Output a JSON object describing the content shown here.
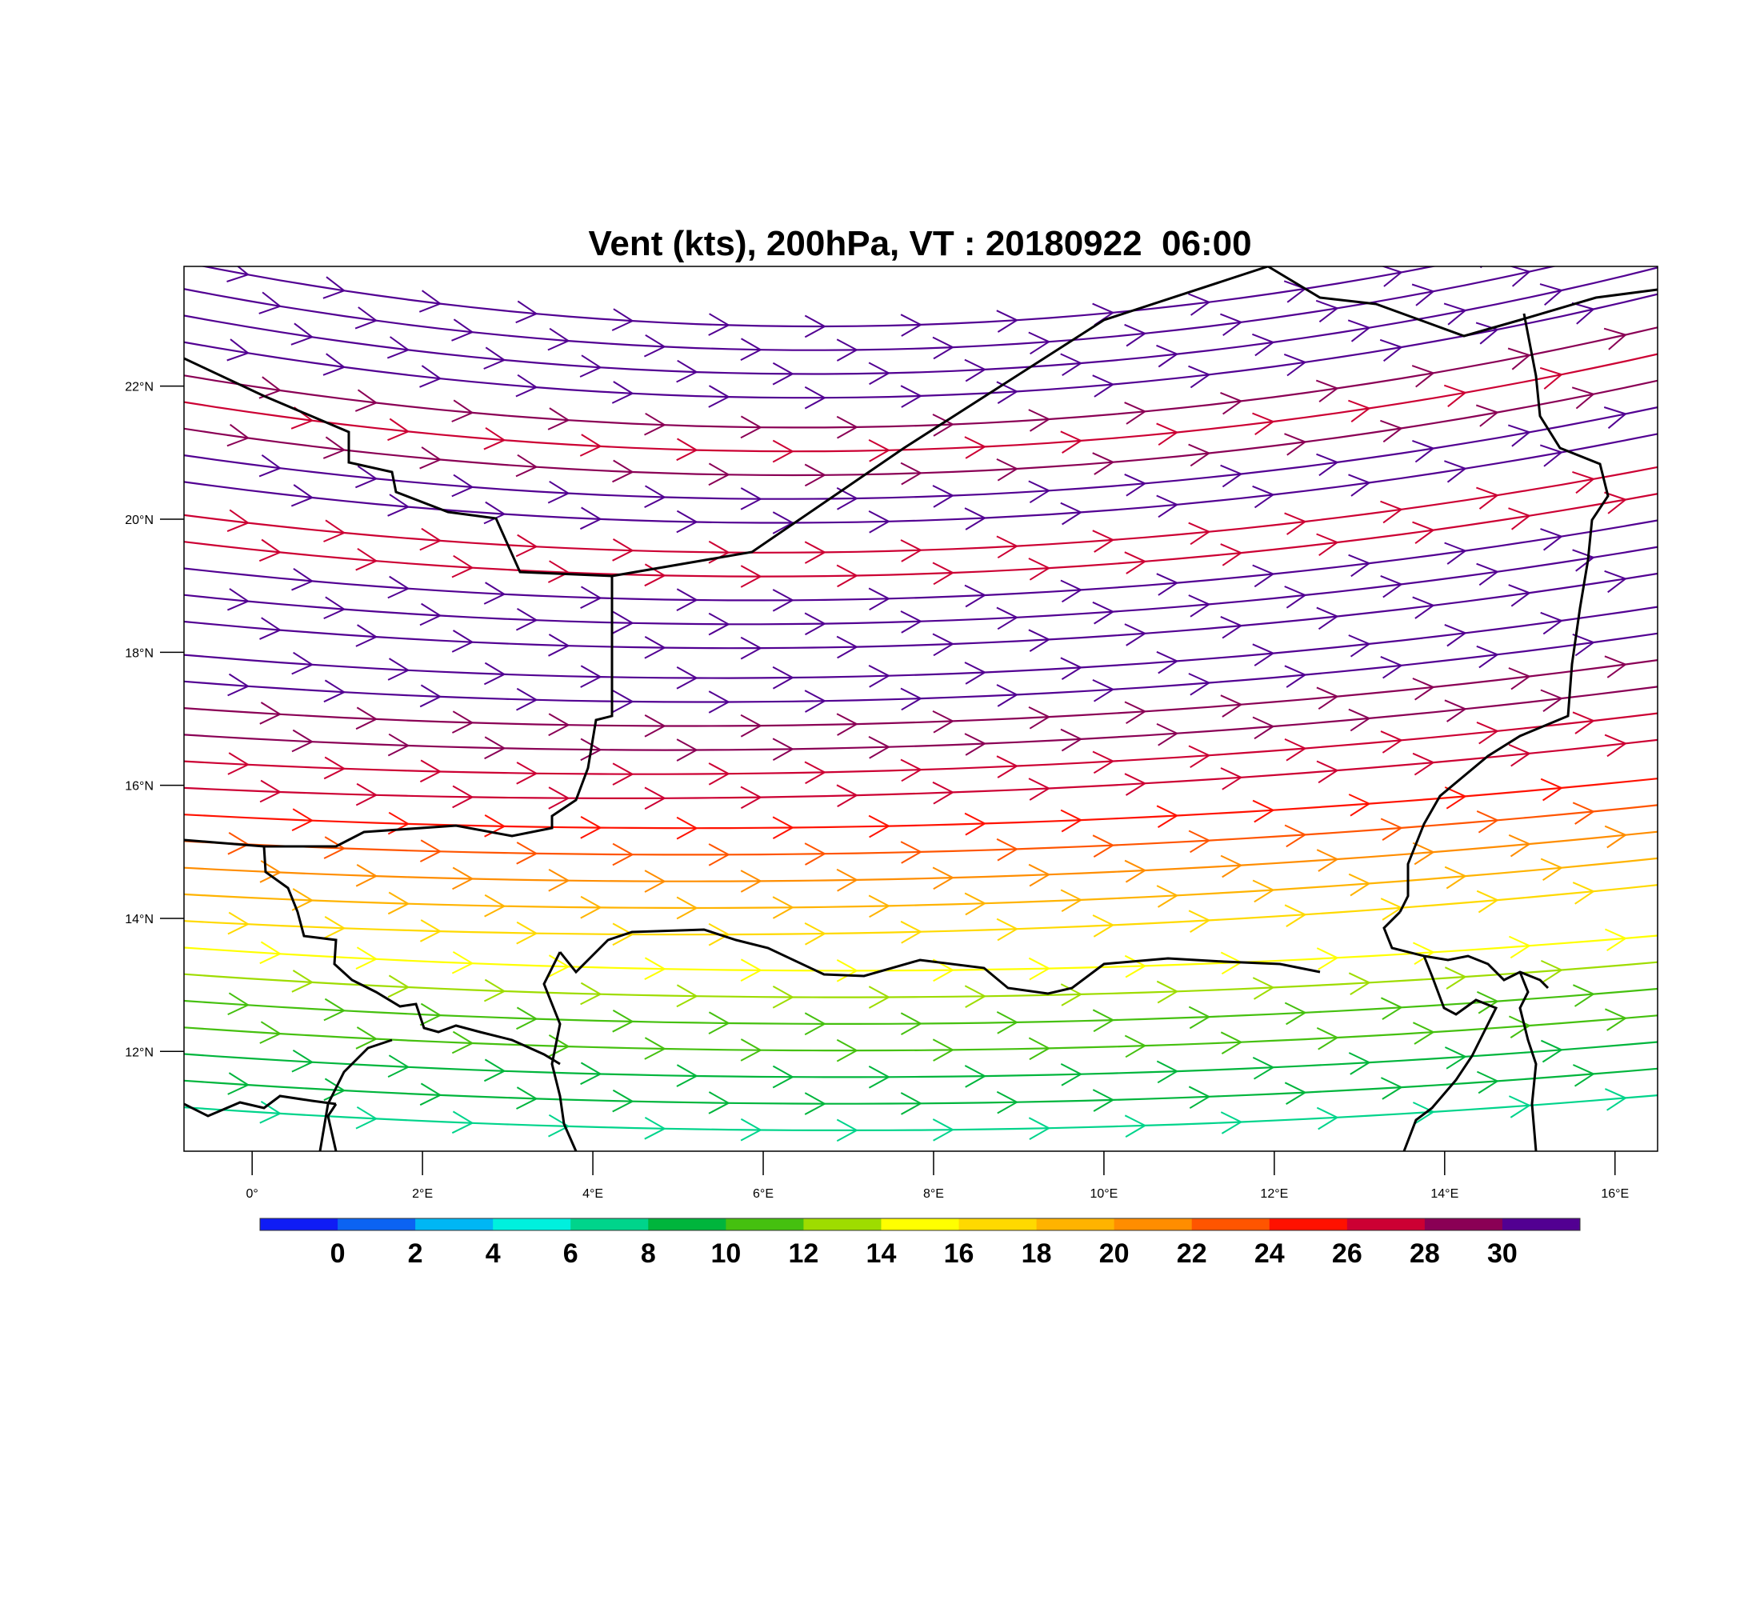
{
  "title": "Vent (kts), 200hPa, VT : 20180922  06:00",
  "map": {
    "lon_range": [
      -0.8,
      16.5
    ],
    "lat_range": [
      10.5,
      23.8
    ],
    "lon_ticks": [
      0,
      2,
      4,
      6,
      8,
      10,
      12,
      14,
      16
    ],
    "lon_tick_labels": [
      "0°",
      "2°E",
      "4°E",
      "6°E",
      "8°E",
      "10°E",
      "12°E",
      "14°E",
      "16°E"
    ],
    "lat_ticks": [
      12,
      14,
      16,
      18,
      20,
      22
    ],
    "lat_tick_labels": [
      "12°N",
      "14°N",
      "16°N",
      "18°N",
      "20°N",
      "22°N"
    ],
    "field": "wind speed streamlines",
    "colorbar": {
      "labels": [
        "0",
        "2",
        "4",
        "6",
        "8",
        "10",
        "12",
        "14",
        "16",
        "18",
        "20",
        "22",
        "24",
        "26",
        "28",
        "30"
      ],
      "colors": [
        "#0f1cf5",
        "#0b63f2",
        "#00b6f4",
        "#00f0de",
        "#00d48b",
        "#00b53c",
        "#45c00f",
        "#9edc00",
        "#ffff00",
        "#ffd900",
        "#ffb300",
        "#ff8d00",
        "#ff5500",
        "#ff1100",
        "#cc0033",
        "#8a0055",
        "#520092"
      ]
    },
    "streamlines": [
      {
        "lat": 23.5,
        "speed": 31
      },
      {
        "lat": 23.1,
        "speed": 31
      },
      {
        "lat": 22.7,
        "speed": 31
      },
      {
        "lat": 22.3,
        "speed": 31
      },
      {
        "lat": 21.8,
        "speed": 29
      },
      {
        "lat": 21.4,
        "speed": 27
      },
      {
        "lat": 21.0,
        "speed": 28
      },
      {
        "lat": 20.6,
        "speed": 31
      },
      {
        "lat": 20.2,
        "speed": 31
      },
      {
        "lat": 19.7,
        "speed": 27
      },
      {
        "lat": 19.3,
        "speed": 27
      },
      {
        "lat": 18.9,
        "speed": 31
      },
      {
        "lat": 18.5,
        "speed": 31
      },
      {
        "lat": 18.1,
        "speed": 31
      },
      {
        "lat": 17.6,
        "speed": 31
      },
      {
        "lat": 17.2,
        "speed": 31
      },
      {
        "lat": 16.8,
        "speed": 28
      },
      {
        "lat": 16.4,
        "speed": 29
      },
      {
        "lat": 16.0,
        "speed": 27
      },
      {
        "lat": 15.6,
        "speed": 26
      },
      {
        "lat": 15.2,
        "speed": 25
      },
      {
        "lat": 14.8,
        "speed": 23
      },
      {
        "lat": 14.4,
        "speed": 21
      },
      {
        "lat": 14.0,
        "speed": 19
      },
      {
        "lat": 13.6,
        "speed": 17
      },
      {
        "lat": 13.2,
        "speed": 14
      },
      {
        "lat": 12.8,
        "speed": 12
      },
      {
        "lat": 12.4,
        "speed": 11
      },
      {
        "lat": 12.0,
        "speed": 10
      },
      {
        "lat": 11.6,
        "speed": 9
      },
      {
        "lat": 11.2,
        "speed": 8
      },
      {
        "lat": 10.8,
        "speed": 7
      }
    ]
  }
}
